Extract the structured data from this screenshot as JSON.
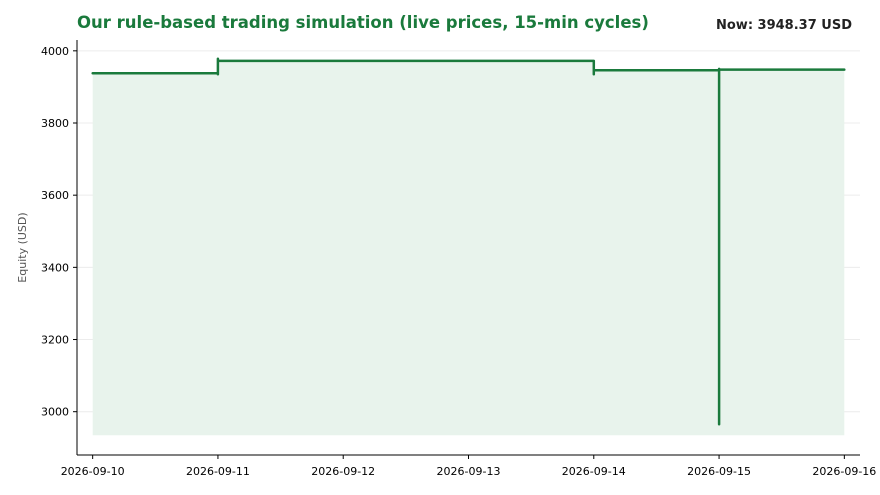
{
  "chart_data": {
    "type": "line",
    "title": "Our rule-based trading simulation (live prices, 15-min cycles)",
    "now_label": "Now: 3948.37 USD",
    "ylabel": "Equity (USD)",
    "xlabel": "",
    "xlim": [
      "2026-09-09T21:00",
      "2026-09-16T03:00"
    ],
    "ylim": [
      2880,
      4030
    ],
    "fill_base": 2935,
    "x_ticks": [
      "2026-09-10",
      "2026-09-11",
      "2026-09-12",
      "2026-09-13",
      "2026-09-14",
      "2026-09-15",
      "2026-09-16"
    ],
    "y_ticks": [
      3000,
      3200,
      3400,
      3600,
      3800,
      4000
    ],
    "grid": "horizontal",
    "colors": {
      "line": "#1a7a3c",
      "fill": "#e8f3ec",
      "title": "#1a7a3c",
      "grid": "#ececec"
    },
    "series": [
      {
        "x": [
          "2026-09-10T00:00",
          "2026-09-11T00:00",
          "2026-09-11T00:00",
          "2026-09-11T00:00",
          "2026-09-11T00:00",
          "2026-09-14T00:00",
          "2026-09-14T00:00",
          "2026-09-14T00:00",
          "2026-09-14T00:00",
          "2026-09-15T00:00",
          "2026-09-15T00:00",
          "2026-09-15T00:00",
          "2026-09-15T00:00",
          "2026-09-16T00:00"
        ],
        "y": [
          3938,
          3938,
          3935,
          3978,
          3972,
          3972,
          3935,
          3948,
          3946,
          3946,
          2965,
          3950,
          3948,
          3948
        ]
      }
    ]
  }
}
